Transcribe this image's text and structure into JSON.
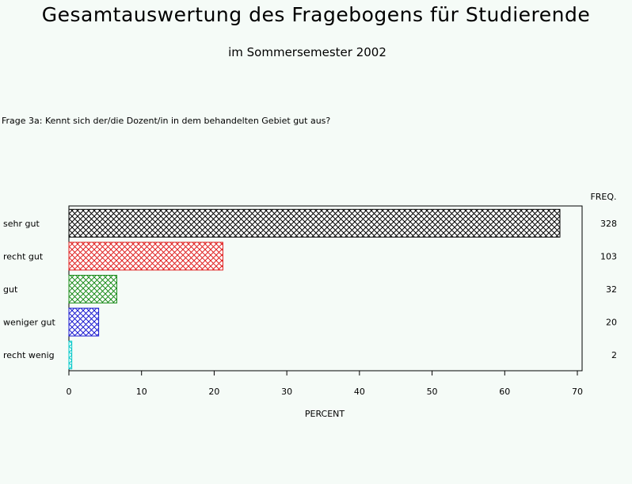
{
  "title": "Gesamtauswertung des Fragebogens für Studierende",
  "subtitle": "im Sommersemester 2002",
  "question": "Frage 3a: Kennt sich der/die  Dozent/in in dem behandelten Gebiet gut aus?",
  "chart_data": {
    "type": "bar",
    "orientation": "horizontal",
    "categories": [
      "sehr gut",
      "recht gut",
      "gut",
      "weniger gut",
      "recht wenig"
    ],
    "values": [
      67.6,
      21.2,
      6.6,
      4.1,
      0.4
    ],
    "freq": [
      328,
      103,
      32,
      20,
      2
    ],
    "freq_label": "FREQ.",
    "xlabel": "PERCENT",
    "xlim": [
      0,
      70
    ],
    "xticks": [
      0,
      10,
      20,
      30,
      40,
      50,
      60,
      70
    ],
    "colors": [
      "#000000",
      "#e02020",
      "#1a8c1a",
      "#1a1ad0",
      "#00c8c8"
    ],
    "fill_pattern": "crosshatch"
  }
}
